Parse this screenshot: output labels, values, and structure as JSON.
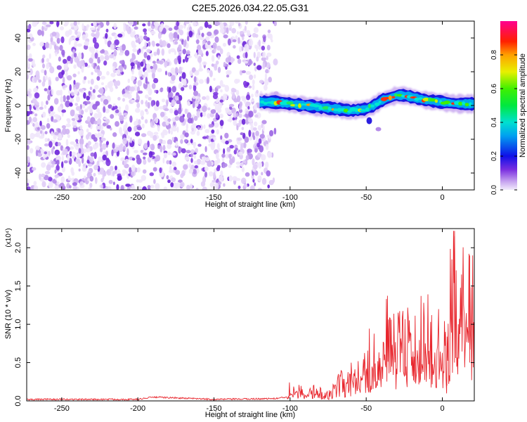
{
  "figure_title": "C2E5.2026.034.22.05.G31",
  "chart_data": [
    {
      "type": "heatmap",
      "title": "C2E5.2026.034.22.05.G31",
      "xlabel": "Height of straight line (km)",
      "ylabel": "Frequency (Hz)",
      "xlim": [
        -273,
        21
      ],
      "ylim": [
        -50,
        50
      ],
      "xticks": [
        -250,
        -200,
        -150,
        -100,
        -50,
        0
      ],
      "yticks": [
        -40,
        -20,
        0,
        20,
        40
      ],
      "noise_region_x": [
        -273,
        -108
      ],
      "signal_start_x": -120,
      "ridge": {
        "x": [
          -120,
          -110,
          -100,
          -90,
          -80,
          -70,
          -60,
          -50,
          -45,
          -40,
          -30,
          -25,
          -20,
          -10,
          0,
          10,
          21
        ],
        "y": [
          2,
          2,
          1,
          0,
          -1,
          -2,
          -3,
          -2,
          0,
          3,
          6,
          6,
          5,
          3,
          2,
          1,
          1
        ]
      },
      "colorbar": {
        "label": "Normalized spectral amplitude",
        "range": [
          0,
          1
        ],
        "ticks": [
          "0.0",
          "0.2",
          "0.4",
          "0.6",
          "0.8"
        ],
        "tick_values": [
          0.0,
          0.2,
          0.4,
          0.6,
          0.8
        ]
      }
    },
    {
      "type": "line",
      "xlabel": "Height of straight line (km)",
      "ylabel": "SNR (10 * v/v)",
      "y_multiplier": "(x10⁴)",
      "xlim": [
        -273,
        21
      ],
      "ylim": [
        0,
        2.25
      ],
      "xticks": [
        -250,
        -200,
        -150,
        -100,
        -50,
        0
      ],
      "yticks": [
        "0.0",
        "0.5",
        "1.0",
        "1.5",
        "2.0"
      ],
      "ytick_values": [
        0,
        0.5,
        1.0,
        1.5,
        2.0
      ],
      "series": [
        {
          "name": "SNR",
          "color": "#e8262d",
          "x": [
            -273,
            -250,
            -200,
            -190,
            -150,
            -110,
            -102,
            -100,
            -95,
            -90,
            -85,
            -80,
            -75,
            -70,
            -65,
            -60,
            -55,
            -50,
            -45,
            -40,
            -35,
            -30,
            -25,
            -20,
            -15,
            -10,
            -5,
            -2,
            0,
            3,
            5,
            8,
            10,
            12,
            15,
            18,
            21
          ],
          "y": [
            0.02,
            0.02,
            0.02,
            0.05,
            0.02,
            0.03,
            0.05,
            0.28,
            0.18,
            0.1,
            0.15,
            0.12,
            0.08,
            0.2,
            0.3,
            0.35,
            0.4,
            0.6,
            0.75,
            0.85,
            0.95,
            0.8,
            0.9,
            0.95,
            0.9,
            1.0,
            1.05,
            1.1,
            1.0,
            0.5,
            1.6,
            2.15,
            1.2,
            1.5,
            1.8,
            1.5,
            1.6
          ]
        }
      ]
    }
  ]
}
